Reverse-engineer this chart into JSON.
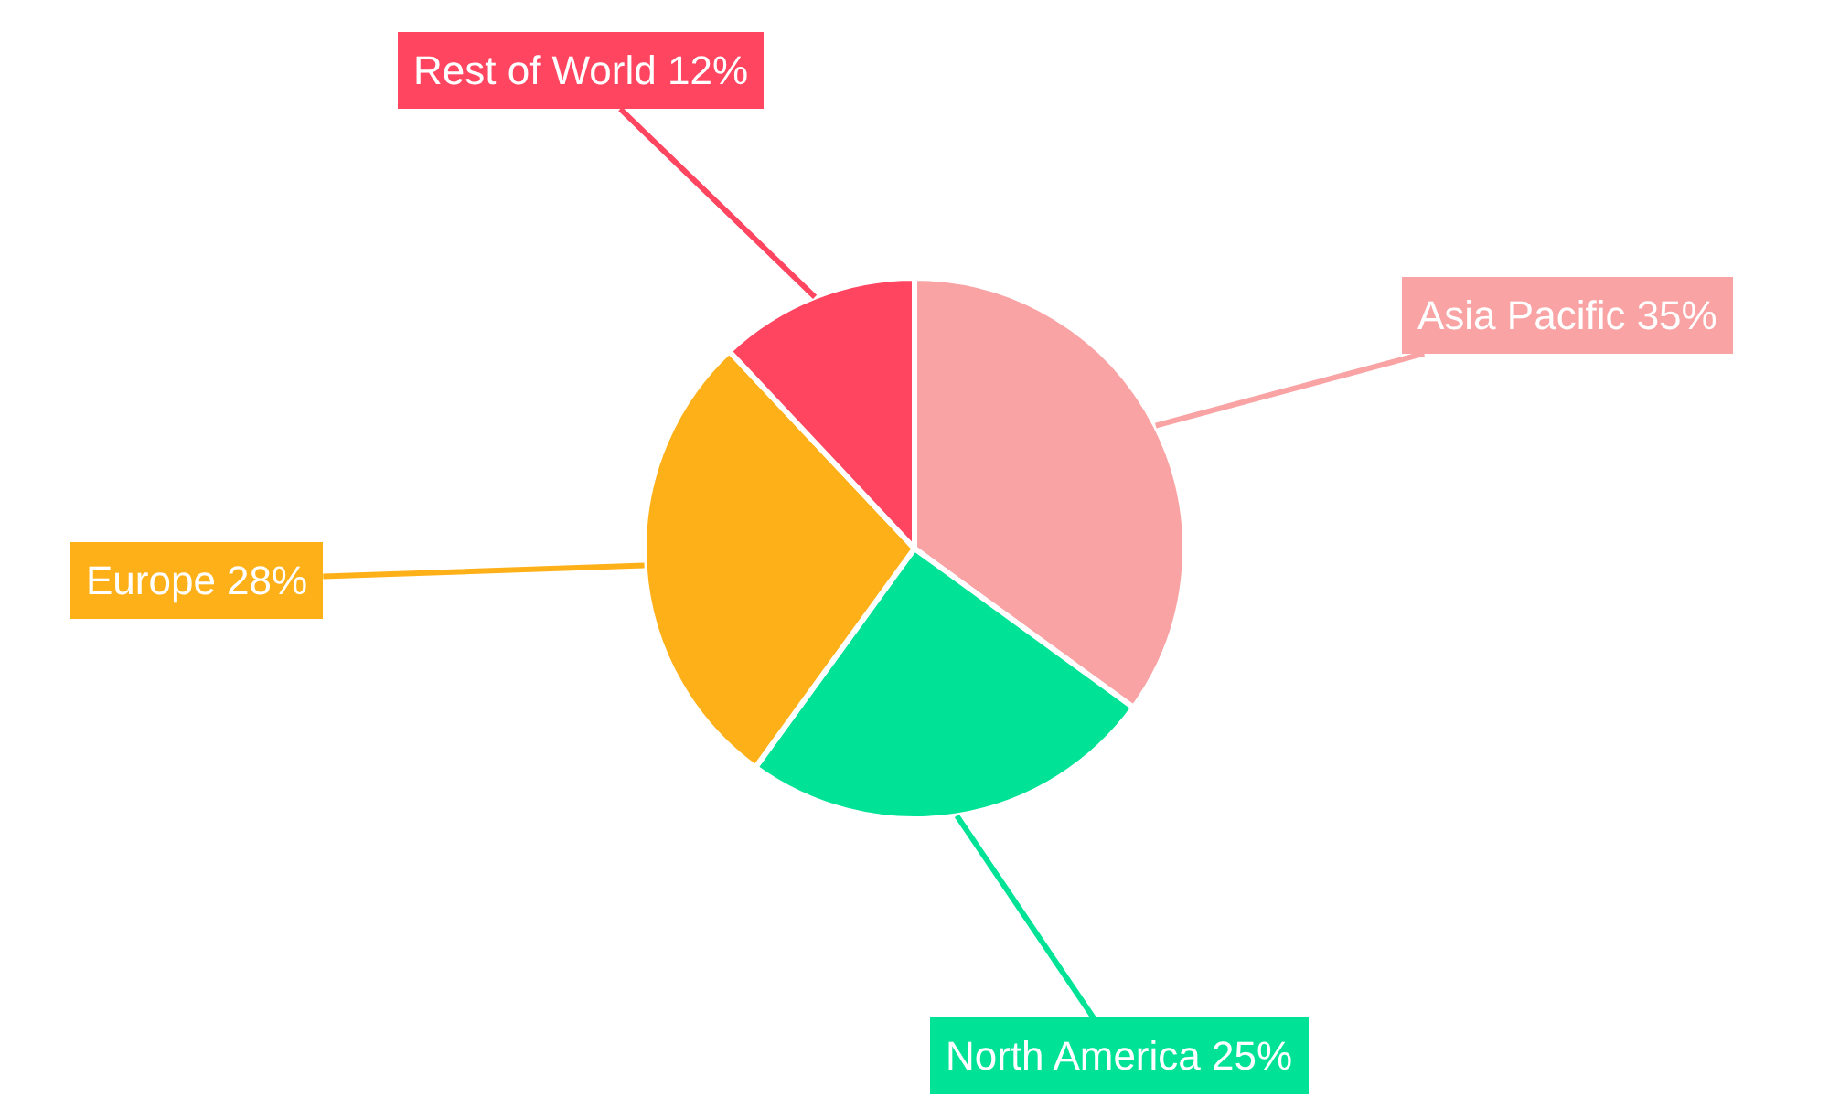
{
  "chart_data": {
    "type": "pie",
    "categories": [
      "Asia Pacific",
      "North America",
      "Europe",
      "Rest of World"
    ],
    "values": [
      35,
      25,
      28,
      12
    ],
    "value_labels": [
      "35%",
      "25%",
      "28%",
      "12%"
    ],
    "colors": [
      "#f9a3a4",
      "#00e396",
      "#feb019",
      "#ff4560"
    ],
    "legend": false
  }
}
